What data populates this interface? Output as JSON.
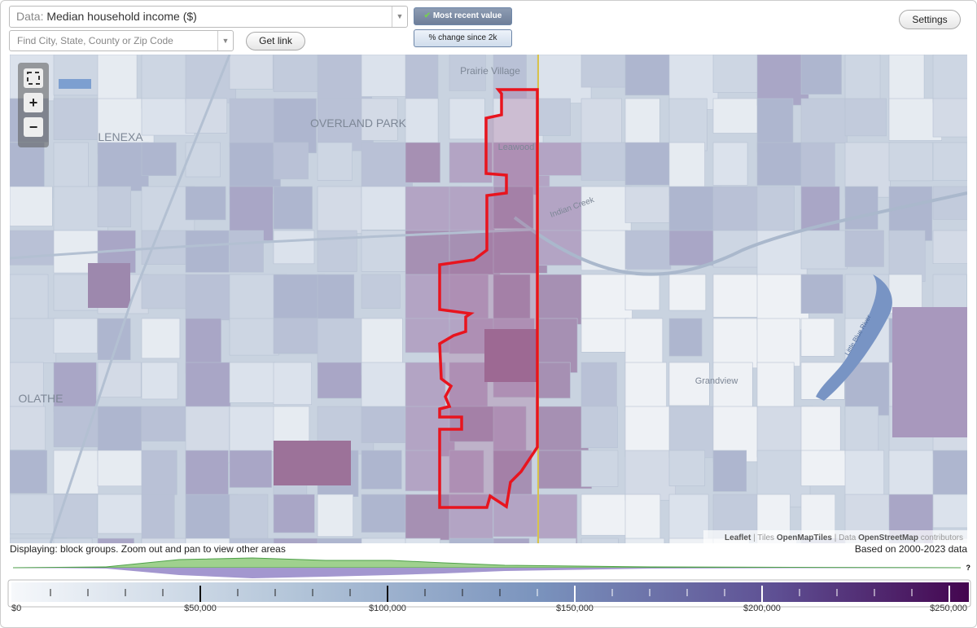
{
  "toolbar": {
    "data_label": "Data:",
    "data_value": "Median household income ($)",
    "search_placeholder": "Find City, State, County or Zip Code",
    "get_link": "Get link",
    "most_recent": "Most recent value",
    "percent_change": "% change since 2k",
    "settings": "Settings"
  },
  "map": {
    "labels": [
      "Prairie Village",
      "OVERLAND PARK",
      "LENEXA",
      "Leawood",
      "Indian Creek",
      "OLATHE",
      "Grandview",
      "Little Blue River"
    ],
    "attribution": {
      "leaflet": "Leaflet",
      "separator": "|",
      "tiles": "Tiles",
      "openmaptiles": "OpenMapTiles",
      "data": "Data",
      "openstreetmap": "OpenStreetMap",
      "contributors": "contributors"
    },
    "zoom_in": "+",
    "zoom_out": "−"
  },
  "footer": {
    "displaying": "Displaying: block groups. Zoom out and pan to view other areas",
    "based_on": "Based on 2000-2023 data",
    "help": "?"
  },
  "legend": {
    "ticks": [
      {
        "value": 0,
        "label": "$0"
      },
      {
        "value": 50000,
        "label": "$50,000"
      },
      {
        "value": 100000,
        "label": "$100,000"
      },
      {
        "value": 150000,
        "label": "$150,000"
      },
      {
        "value": 200000,
        "label": "$200,000"
      },
      {
        "value": 250000,
        "label": "$250,000"
      }
    ]
  }
}
